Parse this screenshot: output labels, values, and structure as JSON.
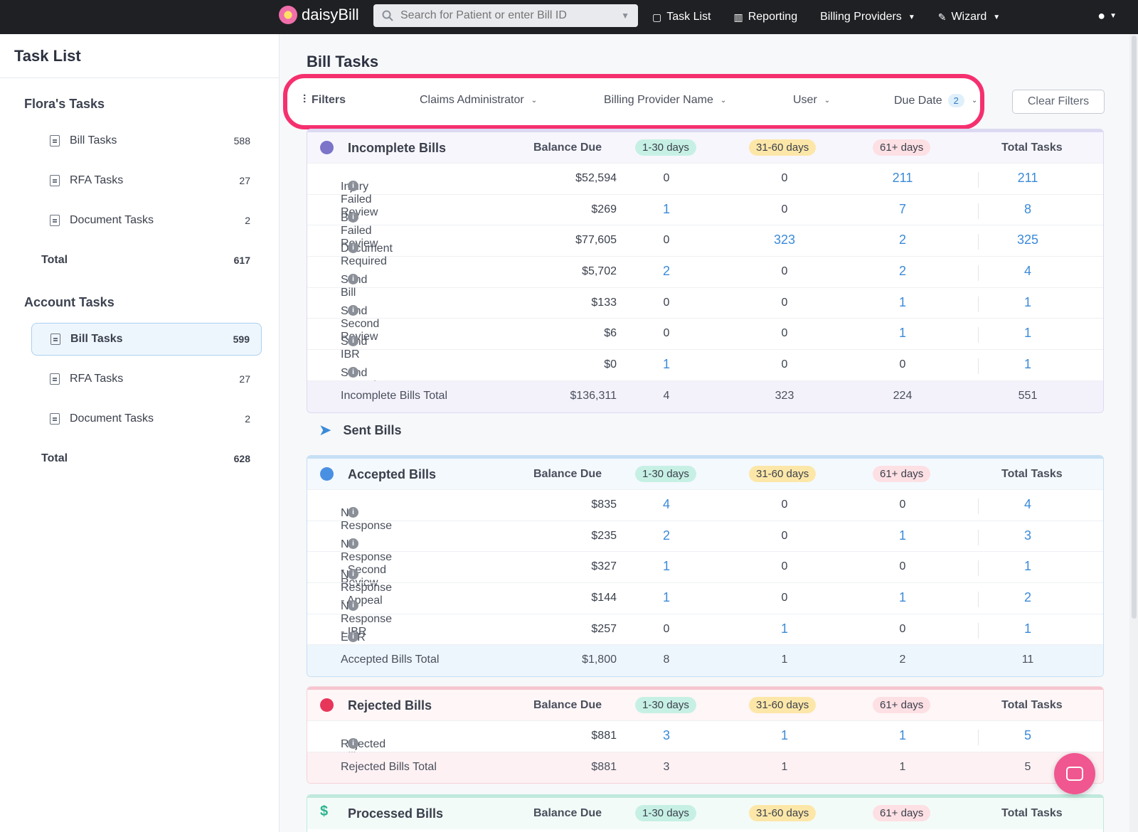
{
  "nav": {
    "brand": "daisyBill",
    "search_placeholder": "Search for Patient or enter Bill ID",
    "links": [
      {
        "label": "Task List",
        "icon": "clipboard-icon"
      },
      {
        "label": "Reporting",
        "icon": "bar-chart-icon"
      },
      {
        "label": "Billing Providers",
        "icon": "chevron-down-icon"
      },
      {
        "label": "Wizard",
        "icon": "wand-icon"
      }
    ]
  },
  "sidebar": {
    "title": "Task List",
    "groups": [
      {
        "title": "Flora's Tasks",
        "items": [
          {
            "label": "Bill Tasks",
            "count": "588"
          },
          {
            "label": "RFA Tasks",
            "count": "27"
          },
          {
            "label": "Document Tasks",
            "count": "2"
          }
        ],
        "total_label": "Total",
        "total": "617"
      },
      {
        "title": "Account Tasks",
        "items": [
          {
            "label": "Bill Tasks",
            "count": "599"
          },
          {
            "label": "RFA Tasks",
            "count": "27"
          },
          {
            "label": "Document Tasks",
            "count": "2"
          }
        ],
        "total_label": "Total",
        "total": "628"
      }
    ]
  },
  "main": {
    "title": "Bill Tasks",
    "filters": {
      "label": "Filters",
      "claims_admin": "Claims Administrator",
      "billing_provider": "Billing Provider Name",
      "user": "User",
      "due_date": "Due Date",
      "due_date_count": "2",
      "clear": "Clear Filters"
    },
    "headers": {
      "balance": "Balance Due",
      "d1": "1-30 days",
      "d2": "31-60 days",
      "d3": "61+ days",
      "total": "Total Tasks"
    },
    "incomplete": {
      "title": "Incomplete Bills",
      "rows": [
        {
          "label": "Injury Failed Review",
          "bal": "$52,594",
          "d1": "0",
          "d2": "0",
          "d3": "211",
          "total": "211"
        },
        {
          "label": "Bill Failed Review",
          "bal": "$269",
          "d1": "1",
          "d2": "0",
          "d3": "7",
          "total": "8"
        },
        {
          "label": "Document Required",
          "bal": "$77,605",
          "d1": "0",
          "d2": "323",
          "d3": "2",
          "total": "325"
        },
        {
          "label": "Send Bill",
          "bal": "$5,702",
          "d1": "2",
          "d2": "0",
          "d3": "2",
          "total": "4"
        },
        {
          "label": "Send Second Review",
          "bal": "$133",
          "d1": "0",
          "d2": "0",
          "d3": "1",
          "total": "1"
        },
        {
          "label": "Send IBR",
          "bal": "$6",
          "d1": "0",
          "d2": "0",
          "d3": "1",
          "total": "1"
        },
        {
          "label": "Send Appeal",
          "bal": "$0",
          "d1": "1",
          "d2": "0",
          "d3": "0",
          "total": "1"
        }
      ],
      "total": {
        "label": "Incomplete Bills Total",
        "bal": "$136,311",
        "d1": "4",
        "d2": "323",
        "d3": "224",
        "total": "551"
      }
    },
    "sent_title": "Sent Bills",
    "accepted": {
      "title": "Accepted Bills",
      "rows": [
        {
          "label": "No Response",
          "bal": "$835",
          "d1": "4",
          "d2": "0",
          "d3": "0",
          "total": "4"
        },
        {
          "label": "No Response - Second Review",
          "bal": "$235",
          "d1": "2",
          "d2": "0",
          "d3": "1",
          "total": "3"
        },
        {
          "label": "No Response - Appeal",
          "bal": "$327",
          "d1": "1",
          "d2": "0",
          "d3": "0",
          "total": "1"
        },
        {
          "label": "No Response - IBR",
          "bal": "$144",
          "d1": "1",
          "d2": "0",
          "d3": "1",
          "total": "2"
        },
        {
          "label": "EOR Missing",
          "bal": "$257",
          "d1": "0",
          "d2": "1",
          "d3": "0",
          "total": "1"
        }
      ],
      "total": {
        "label": "Accepted Bills Total",
        "bal": "$1,800",
        "d1": "8",
        "d2": "1",
        "d3": "2",
        "total": "11"
      }
    },
    "rejected": {
      "title": "Rejected Bills",
      "rows": [
        {
          "label": "Rejected Bill",
          "bal": "$881",
          "d1": "3",
          "d2": "1",
          "d3": "1",
          "total": "5"
        }
      ],
      "total": {
        "label": "Rejected Bills Total",
        "bal": "$881",
        "d1": "3",
        "d2": "1",
        "d3": "1",
        "total": "5"
      }
    },
    "processed": {
      "title": "Processed Bills"
    }
  },
  "colors": {
    "accent": "#f5306f",
    "link": "#3b8ad9",
    "incomplete": "#7b74c9",
    "accepted": "#4a90e2",
    "rejected": "#e8355a",
    "processed": "#2bb58f"
  }
}
